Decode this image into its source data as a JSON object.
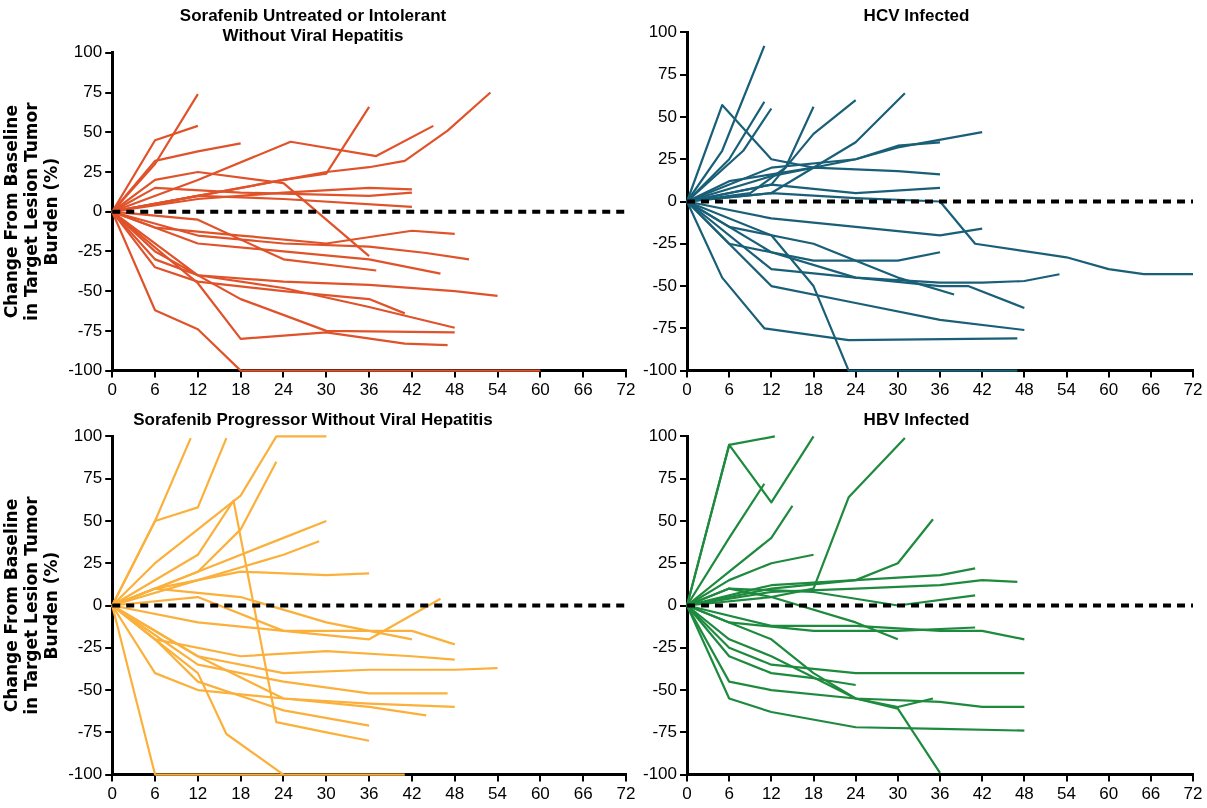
{
  "chart_data": [
    {
      "type": "line",
      "title": "Sorafenib Untreated or Intolerant\nWithout Viral Hepatitis",
      "ylabel": "Change From Baseline in Target Lesion Tumor Burden (%)",
      "xlim": [
        0,
        72
      ],
      "xticks": [
        0,
        6,
        12,
        18,
        24,
        30,
        36,
        42,
        48,
        54,
        60,
        66,
        72
      ],
      "ylim": [
        -100,
        100
      ],
      "yticks": [
        -100,
        -75,
        -50,
        -25,
        0,
        25,
        50,
        75,
        100
      ],
      "grid": false,
      "legend": false,
      "marker": "none",
      "line_style": "solid",
      "ref_lines": [
        {
          "axis": "y",
          "value": 0,
          "color": "#000000",
          "line_style": "dashed"
        }
      ],
      "series": [
        {
          "color": "#e0522a",
          "x": [
            0,
            6,
            12
          ],
          "values": [
            0,
            30,
            74
          ]
        },
        {
          "color": "#e0522a",
          "x": [
            0,
            6,
            12
          ],
          "values": [
            0,
            45,
            54
          ]
        },
        {
          "color": "#e0522a",
          "x": [
            0,
            6,
            12,
            18,
            60
          ],
          "values": [
            0,
            -62,
            -74,
            -100,
            -100
          ]
        },
        {
          "color": "#e0522a",
          "x": [
            0,
            12,
            24,
            30,
            36,
            41,
            47,
            53
          ],
          "values": [
            0,
            10,
            20,
            25,
            28,
            32,
            51,
            75
          ]
        },
        {
          "color": "#e0522a",
          "x": [
            0,
            6,
            12,
            18,
            24,
            30,
            36
          ],
          "values": [
            0,
            5,
            10,
            15,
            20,
            24,
            66
          ]
        },
        {
          "color": "#e0522a",
          "x": [
            0,
            12,
            25,
            37,
            45
          ],
          "values": [
            0,
            20,
            44,
            35,
            54
          ]
        },
        {
          "color": "#e0522a",
          "x": [
            0,
            6,
            12,
            18
          ],
          "values": [
            0,
            32,
            38,
            43
          ]
        },
        {
          "color": "#e0522a",
          "x": [
            0,
            12,
            24,
            36,
            42
          ],
          "values": [
            0,
            8,
            12,
            15,
            14
          ]
        },
        {
          "color": "#e0522a",
          "x": [
            0,
            6,
            18,
            36,
            42
          ],
          "values": [
            0,
            15,
            12,
            10,
            12
          ]
        },
        {
          "color": "#e0522a",
          "x": [
            0,
            12,
            24,
            42
          ],
          "values": [
            0,
            10,
            8,
            3
          ]
        },
        {
          "color": "#e0522a",
          "x": [
            0,
            6,
            18,
            30,
            42,
            48
          ],
          "values": [
            0,
            -10,
            -15,
            -20,
            -12,
            -14
          ]
        },
        {
          "color": "#e0522a",
          "x": [
            0,
            12,
            24,
            36,
            44,
            50
          ],
          "values": [
            0,
            -15,
            -20,
            -22,
            -26,
            -30
          ]
        },
        {
          "color": "#e0522a",
          "x": [
            0,
            6,
            12,
            24,
            36,
            48,
            54
          ],
          "values": [
            0,
            -30,
            -40,
            -44,
            -46,
            -50,
            -53
          ]
        },
        {
          "color": "#e0522a",
          "x": [
            0,
            12,
            24,
            36,
            48
          ],
          "values": [
            0,
            -40,
            -48,
            -60,
            -73
          ]
        },
        {
          "color": "#e0522a",
          "x": [
            0,
            6,
            18,
            30,
            48
          ],
          "values": [
            0,
            -25,
            -55,
            -75,
            -76
          ]
        },
        {
          "color": "#e0522a",
          "x": [
            0,
            12,
            18,
            30,
            41,
            47
          ],
          "values": [
            0,
            -45,
            -80,
            -76,
            -83,
            -84
          ]
        },
        {
          "color": "#e0522a",
          "x": [
            0,
            12,
            24,
            36,
            46
          ],
          "values": [
            0,
            -20,
            -25,
            -30,
            -39
          ]
        },
        {
          "color": "#e0522a",
          "x": [
            0,
            6,
            12,
            24,
            36,
            41
          ],
          "values": [
            0,
            -35,
            -44,
            -50,
            -55,
            -64
          ]
        },
        {
          "color": "#e0522a",
          "x": [
            0,
            12,
            24,
            37
          ],
          "values": [
            0,
            -5,
            -30,
            -37
          ]
        },
        {
          "color": "#e0522a",
          "x": [
            0,
            6,
            12,
            24,
            36
          ],
          "values": [
            0,
            20,
            25,
            18,
            -28
          ]
        }
      ]
    },
    {
      "type": "line",
      "title": "HCV Infected",
      "xlim": [
        0,
        72
      ],
      "xticks": [
        0,
        6,
        12,
        18,
        24,
        30,
        36,
        42,
        48,
        54,
        60,
        66,
        72
      ],
      "ylim": [
        -100,
        100
      ],
      "yticks": [
        -100,
        -75,
        -50,
        -25,
        0,
        25,
        50,
        75,
        100
      ],
      "grid": false,
      "legend": false,
      "marker": "none",
      "line_style": "solid",
      "ref_lines": [
        {
          "axis": "y",
          "value": 0,
          "color": "#000000",
          "line_style": "dashed"
        }
      ],
      "series": [
        {
          "color": "#1a5f78",
          "x": [
            0,
            5,
            11
          ],
          "values": [
            0,
            30,
            92
          ]
        },
        {
          "color": "#1a5f78",
          "x": [
            0,
            5,
            12,
            18
          ],
          "values": [
            0,
            57,
            25,
            20
          ]
        },
        {
          "color": "#1a5f78",
          "x": [
            0,
            6,
            11
          ],
          "values": [
            0,
            25,
            59
          ]
        },
        {
          "color": "#1a5f78",
          "x": [
            0,
            8,
            12
          ],
          "values": [
            0,
            30,
            55
          ]
        },
        {
          "color": "#1a5f78",
          "x": [
            0,
            9,
            14,
            18
          ],
          "values": [
            0,
            5,
            20,
            56
          ]
        },
        {
          "color": "#1a5f78",
          "x": [
            0,
            12,
            18,
            24
          ],
          "values": [
            0,
            10,
            40,
            60
          ]
        },
        {
          "color": "#1a5f78",
          "x": [
            0,
            12,
            24,
            31
          ],
          "values": [
            0,
            5,
            35,
            64
          ]
        },
        {
          "color": "#1a5f78",
          "x": [
            0,
            12,
            24,
            30,
            42
          ],
          "values": [
            0,
            15,
            25,
            32,
            41
          ]
        },
        {
          "color": "#1a5f78",
          "x": [
            0,
            12,
            24,
            30,
            36
          ],
          "values": [
            0,
            20,
            25,
            33,
            35
          ]
        },
        {
          "color": "#1a5f78",
          "x": [
            0,
            6,
            18,
            30,
            36
          ],
          "values": [
            0,
            12,
            20,
            18,
            16
          ]
        },
        {
          "color": "#1a5f78",
          "x": [
            0,
            12,
            24,
            36
          ],
          "values": [
            0,
            10,
            5,
            8
          ]
        },
        {
          "color": "#1a5f78",
          "x": [
            0,
            12,
            24,
            36,
            41,
            54,
            60,
            65,
            72
          ],
          "values": [
            0,
            5,
            2,
            0,
            -25,
            -33,
            -40,
            -43,
            -43
          ]
        },
        {
          "color": "#1a5f78",
          "x": [
            0,
            12,
            24,
            36,
            42,
            48,
            53
          ],
          "values": [
            0,
            -40,
            -45,
            -48,
            -48,
            -47,
            -43
          ]
        },
        {
          "color": "#1a5f78",
          "x": [
            0,
            12,
            18,
            23,
            47
          ],
          "values": [
            0,
            -20,
            -50,
            -100,
            -100
          ]
        },
        {
          "color": "#1a5f78",
          "x": [
            0,
            5,
            11,
            23,
            47
          ],
          "values": [
            0,
            -45,
            -75,
            -82,
            -81
          ]
        },
        {
          "color": "#1a5f78",
          "x": [
            0,
            12,
            24,
            36,
            40,
            48
          ],
          "values": [
            0,
            -30,
            -45,
            -50,
            -50,
            -63
          ]
        },
        {
          "color": "#1a5f78",
          "x": [
            0,
            12,
            24,
            36,
            42
          ],
          "values": [
            0,
            -10,
            -15,
            -20,
            -16
          ]
        },
        {
          "color": "#1a5f78",
          "x": [
            0,
            6,
            18,
            30,
            36
          ],
          "values": [
            0,
            -25,
            -35,
            -35,
            -30
          ]
        },
        {
          "color": "#1a5f78",
          "x": [
            0,
            12,
            24,
            36,
            48
          ],
          "values": [
            0,
            -50,
            -60,
            -70,
            -76
          ]
        },
        {
          "color": "#1a5f78",
          "x": [
            0,
            6,
            18,
            30,
            38
          ],
          "values": [
            0,
            -15,
            -25,
            -45,
            -55
          ]
        }
      ]
    },
    {
      "type": "line",
      "title": "Sorafenib Progressor Without Viral Hepatitis",
      "ylabel": "Change From Baseline in Target Lesion Tumor Burden (%)",
      "xlim": [
        0,
        72
      ],
      "xticks": [
        0,
        6,
        12,
        18,
        24,
        30,
        36,
        42,
        48,
        54,
        60,
        66,
        72
      ],
      "ylim": [
        -100,
        100
      ],
      "yticks": [
        -100,
        -75,
        -50,
        -25,
        0,
        25,
        50,
        75,
        100
      ],
      "grid": false,
      "legend": false,
      "marker": "none",
      "line_style": "solid",
      "ref_lines": [
        {
          "axis": "y",
          "value": 0,
          "color": "#000000",
          "line_style": "dashed"
        }
      ],
      "series": [
        {
          "color": "#fbb03b",
          "x": [
            0,
            6,
            41
          ],
          "values": [
            0,
            -100,
            -100
          ]
        },
        {
          "color": "#fbb03b",
          "x": [
            0,
            6,
            12,
            18,
            23,
            30
          ],
          "values": [
            0,
            25,
            45,
            65,
            100,
            100
          ]
        },
        {
          "color": "#fbb03b",
          "x": [
            0,
            6,
            11
          ],
          "values": [
            0,
            50,
            99
          ]
        },
        {
          "color": "#fbb03b",
          "x": [
            0,
            6,
            12,
            16
          ],
          "values": [
            0,
            50,
            58,
            99
          ]
        },
        {
          "color": "#fbb03b",
          "x": [
            0,
            12,
            18,
            23
          ],
          "values": [
            0,
            20,
            45,
            85
          ]
        },
        {
          "color": "#fbb03b",
          "x": [
            0,
            12,
            17,
            23,
            30,
            36
          ],
          "values": [
            0,
            30,
            62,
            -69,
            -75,
            -80
          ]
        },
        {
          "color": "#fbb03b",
          "x": [
            0,
            12,
            24,
            30
          ],
          "values": [
            0,
            20,
            40,
            50
          ]
        },
        {
          "color": "#fbb03b",
          "x": [
            0,
            12,
            24,
            29
          ],
          "values": [
            0,
            15,
            30,
            38
          ]
        },
        {
          "color": "#fbb03b",
          "x": [
            0,
            6,
            18,
            30,
            36
          ],
          "values": [
            0,
            10,
            20,
            18,
            19
          ]
        },
        {
          "color": "#fbb03b",
          "x": [
            0,
            12,
            24,
            36,
            46
          ],
          "values": [
            0,
            5,
            -15,
            -20,
            4
          ]
        },
        {
          "color": "#fbb03b",
          "x": [
            0,
            12,
            24,
            36,
            42,
            48
          ],
          "values": [
            0,
            -10,
            -15,
            -15,
            -15,
            -23
          ]
        },
        {
          "color": "#fbb03b",
          "x": [
            0,
            6,
            18,
            30,
            42,
            48
          ],
          "values": [
            0,
            -20,
            -30,
            -27,
            -30,
            -32
          ]
        },
        {
          "color": "#fbb03b",
          "x": [
            0,
            12,
            24,
            36,
            48,
            54
          ],
          "values": [
            0,
            -30,
            -40,
            -38,
            -38,
            -37
          ]
        },
        {
          "color": "#fbb03b",
          "x": [
            0,
            6,
            12,
            24,
            36,
            48
          ],
          "values": [
            0,
            -40,
            -50,
            -55,
            -58,
            -60
          ]
        },
        {
          "color": "#fbb03b",
          "x": [
            0,
            12,
            24,
            36,
            47
          ],
          "values": [
            0,
            -35,
            -45,
            -52,
            -52
          ]
        },
        {
          "color": "#fbb03b",
          "x": [
            0,
            6,
            12,
            24,
            36
          ],
          "values": [
            0,
            -20,
            -45,
            -62,
            -71
          ]
        },
        {
          "color": "#fbb03b",
          "x": [
            0,
            6,
            12,
            16,
            24
          ],
          "values": [
            0,
            -20,
            -40,
            -76,
            -100
          ]
        },
        {
          "color": "#fbb03b",
          "x": [
            0,
            6,
            18,
            30,
            42
          ],
          "values": [
            0,
            10,
            5,
            -10,
            -20
          ]
        },
        {
          "color": "#fbb03b",
          "x": [
            0,
            12,
            24,
            36,
            44
          ],
          "values": [
            0,
            -30,
            -55,
            -60,
            -65
          ]
        }
      ]
    },
    {
      "type": "line",
      "title": "HBV Infected",
      "xlim": [
        0,
        72
      ],
      "xticks": [
        0,
        6,
        12,
        18,
        24,
        30,
        36,
        42,
        48,
        54,
        60,
        66,
        72
      ],
      "ylim": [
        -100,
        100
      ],
      "yticks": [
        -100,
        -75,
        -50,
        -25,
        0,
        25,
        50,
        75,
        100
      ],
      "grid": false,
      "legend": false,
      "marker": "none",
      "line_style": "solid",
      "ref_lines": [
        {
          "axis": "y",
          "value": 0,
          "color": "#000000",
          "line_style": "dashed"
        }
      ],
      "series": [
        {
          "color": "#1e8a3e",
          "x": [
            0,
            6,
            12.5
          ],
          "values": [
            0,
            95,
            100
          ]
        },
        {
          "color": "#1e8a3e",
          "x": [
            0,
            6,
            12,
            18
          ],
          "values": [
            0,
            95,
            61,
            100
          ]
        },
        {
          "color": "#1e8a3e",
          "x": [
            0,
            12,
            18,
            23,
            31
          ],
          "values": [
            0,
            5,
            10,
            64,
            99
          ]
        },
        {
          "color": "#1e8a3e",
          "x": [
            0,
            6,
            12,
            18,
            24,
            30,
            36
          ],
          "values": [
            0,
            -10,
            -20,
            -40,
            -55,
            -61,
            -99
          ]
        },
        {
          "color": "#1e8a3e",
          "x": [
            0,
            12,
            24,
            30,
            35
          ],
          "values": [
            0,
            10,
            15,
            25,
            51
          ]
        },
        {
          "color": "#1e8a3e",
          "x": [
            0,
            6,
            12,
            15
          ],
          "values": [
            0,
            20,
            40,
            59
          ]
        },
        {
          "color": "#1e8a3e",
          "x": [
            0,
            6,
            11
          ],
          "values": [
            0,
            40,
            72
          ]
        },
        {
          "color": "#1e8a3e",
          "x": [
            0,
            12,
            24,
            36,
            42,
            47
          ],
          "values": [
            0,
            8,
            10,
            12,
            15,
            14
          ]
        },
        {
          "color": "#1e8a3e",
          "x": [
            0,
            12,
            24,
            36,
            41
          ],
          "values": [
            0,
            12,
            15,
            18,
            22
          ]
        },
        {
          "color": "#1e8a3e",
          "x": [
            0,
            6,
            18,
            30,
            41
          ],
          "values": [
            0,
            10,
            8,
            0,
            6
          ]
        },
        {
          "color": "#1e8a3e",
          "x": [
            0,
            12,
            24,
            36,
            42,
            48
          ],
          "values": [
            0,
            -12,
            -12,
            -15,
            -15,
            -20
          ]
        },
        {
          "color": "#1e8a3e",
          "x": [
            0,
            6,
            18,
            30,
            41
          ],
          "values": [
            0,
            -10,
            -15,
            -15,
            -13
          ]
        },
        {
          "color": "#1e8a3e",
          "x": [
            0,
            6,
            12,
            24,
            36,
            48
          ],
          "values": [
            0,
            -25,
            -35,
            -40,
            -40,
            -40
          ]
        },
        {
          "color": "#1e8a3e",
          "x": [
            0,
            6,
            12,
            24,
            36,
            42,
            48
          ],
          "values": [
            0,
            -45,
            -50,
            -55,
            -57,
            -60,
            -60
          ]
        },
        {
          "color": "#1e8a3e",
          "x": [
            0,
            6,
            12,
            24,
            36,
            48
          ],
          "values": [
            0,
            -55,
            -63,
            -72,
            -73,
            -74
          ]
        },
        {
          "color": "#1e8a3e",
          "x": [
            0,
            6,
            12,
            18,
            24
          ],
          "values": [
            0,
            -30,
            -40,
            -43,
            -47
          ]
        },
        {
          "color": "#1e8a3e",
          "x": [
            0,
            6,
            12,
            24,
            30,
            35
          ],
          "values": [
            0,
            -20,
            -30,
            -55,
            -60,
            -55
          ]
        },
        {
          "color": "#1e8a3e",
          "x": [
            0,
            6,
            12,
            24,
            30
          ],
          "values": [
            0,
            10,
            5,
            -10,
            -20
          ]
        },
        {
          "color": "#1e8a3e",
          "x": [
            0,
            6,
            12,
            18
          ],
          "values": [
            0,
            15,
            25,
            30
          ]
        }
      ]
    }
  ]
}
